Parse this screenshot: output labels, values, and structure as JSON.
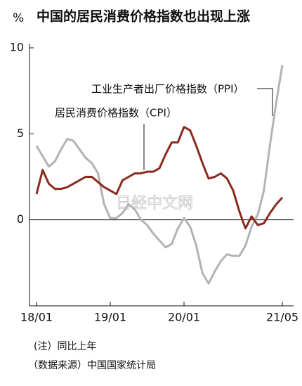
{
  "chart_data": {
    "type": "line",
    "unit": "%",
    "title": "中国的居民消费价格指数也出现上涨",
    "categories": [
      "18/01",
      null,
      null,
      null,
      null,
      null,
      null,
      null,
      null,
      null,
      null,
      null,
      "19/01",
      null,
      null,
      null,
      null,
      null,
      null,
      null,
      null,
      null,
      null,
      null,
      "20/01",
      null,
      null,
      null,
      null,
      null,
      null,
      null,
      null,
      null,
      null,
      null,
      null,
      null,
      null,
      null,
      "21/05"
    ],
    "series": [
      {
        "name": "居民消费价格指数（CPI）",
        "color": "#8b2a1e",
        "values": [
          1.5,
          2.9,
          2.1,
          1.8,
          1.8,
          1.9,
          2.1,
          2.3,
          2.5,
          2.5,
          2.2,
          1.9,
          1.7,
          1.5,
          2.3,
          2.5,
          2.7,
          2.7,
          2.8,
          2.8,
          3.0,
          3.8,
          4.5,
          4.5,
          5.4,
          5.2,
          4.3,
          3.3,
          2.4,
          2.5,
          2.7,
          2.4,
          1.7,
          0.5,
          -0.5,
          0.2,
          -0.3,
          -0.2,
          0.4,
          0.9,
          1.3
        ]
      },
      {
        "name": "工业生产者出厂价格指数（PPI）",
        "color": "#b3b3b3",
        "values": [
          4.3,
          3.7,
          3.1,
          3.4,
          4.1,
          4.7,
          4.6,
          4.1,
          3.6,
          3.3,
          2.7,
          0.9,
          0.1,
          0.1,
          0.4,
          0.9,
          0.6,
          0.0,
          -0.3,
          -0.8,
          -1.2,
          -1.6,
          -1.4,
          -0.5,
          0.1,
          -0.4,
          -1.5,
          -3.1,
          -3.7,
          -3.0,
          -2.4,
          -2.0,
          -2.1,
          -2.1,
          -1.5,
          -0.4,
          0.3,
          1.7,
          4.4,
          6.8,
          9.0
        ]
      }
    ],
    "ylim": [
      -5,
      10
    ],
    "yticks": [
      0,
      5,
      10
    ],
    "watermark": "日经中文网",
    "notes": [
      "(注）同比上年",
      "（数据来源）中国国家统计局"
    ]
  }
}
